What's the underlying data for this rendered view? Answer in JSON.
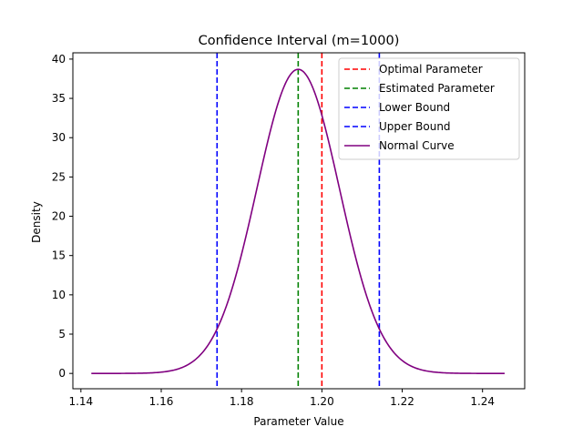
{
  "chart_data": {
    "type": "line",
    "title": "Confidence Interval (m=1000)",
    "xlabel": "Parameter Value",
    "ylabel": "Density",
    "xlim": [
      1.138,
      1.2505
    ],
    "ylim": [
      -1.95,
      40.8
    ],
    "xticks": [
      1.14,
      1.16,
      1.18,
      1.2,
      1.22,
      1.24
    ],
    "xtick_labels": [
      "1.14",
      "1.16",
      "1.18",
      "1.20",
      "1.22",
      "1.24"
    ],
    "yticks": [
      0,
      5,
      10,
      15,
      20,
      25,
      30,
      35,
      40
    ],
    "ytick_labels": [
      "0",
      "5",
      "10",
      "15",
      "20",
      "25",
      "30",
      "35",
      "40"
    ],
    "grid": false,
    "legend_position": "top-right",
    "vertical_lines": [
      {
        "name": "Optimal Parameter",
        "x": 1.2,
        "color": "#ff0000",
        "style": "dashed"
      },
      {
        "name": "Estimated Parameter",
        "x": 1.1941,
        "color": "#008000",
        "style": "dashed"
      },
      {
        "name": "Lower Bound",
        "x": 1.1739,
        "color": "#0000ff",
        "style": "dashed"
      },
      {
        "name": "Upper Bound",
        "x": 1.2143,
        "color": "#0000ff",
        "style": "dashed"
      }
    ],
    "series": [
      {
        "name": "Normal Curve",
        "color": "#800080",
        "style": "solid",
        "mean": 1.1941,
        "std": 0.0103,
        "x_range": [
          1.1426,
          1.2455
        ],
        "peak": 38.7
      }
    ]
  }
}
